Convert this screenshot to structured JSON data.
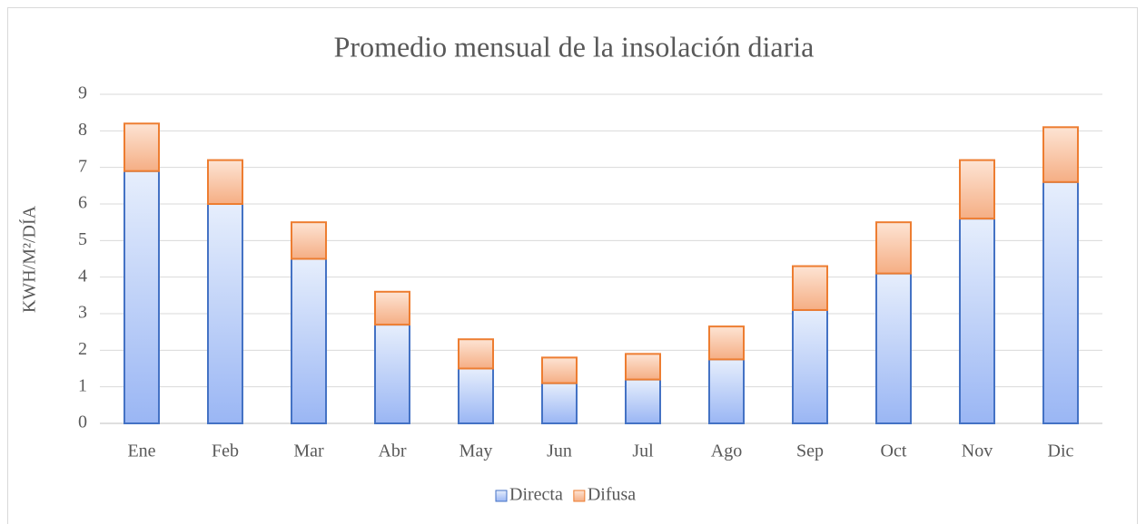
{
  "chart_data": {
    "type": "stacked_bar",
    "title": "Promedio mensual de la insolación diaria",
    "y_label": "KWH/M²/DÍA",
    "categories": [
      "Ene",
      "Feb",
      "Mar",
      "Abr",
      "May",
      "Jun",
      "Jul",
      "Ago",
      "Sep",
      "Oct",
      "Nov",
      "Dic"
    ],
    "series": [
      {
        "name": "Directa",
        "color": "#4472c4",
        "values": [
          6.9,
          6.0,
          4.5,
          2.7,
          1.5,
          1.1,
          1.2,
          1.75,
          3.1,
          4.1,
          5.6,
          6.6
        ]
      },
      {
        "name": "Difusa",
        "color": "#ed7d31",
        "values": [
          1.3,
          1.2,
          1.0,
          0.9,
          0.8,
          0.7,
          0.7,
          0.9,
          1.2,
          1.4,
          1.6,
          1.5
        ]
      }
    ],
    "ylim": [
      0,
      9
    ],
    "yticks": [
      0,
      1,
      2,
      3,
      4,
      5,
      6,
      7,
      8,
      9
    ],
    "grid": true,
    "legend": "bottom"
  }
}
